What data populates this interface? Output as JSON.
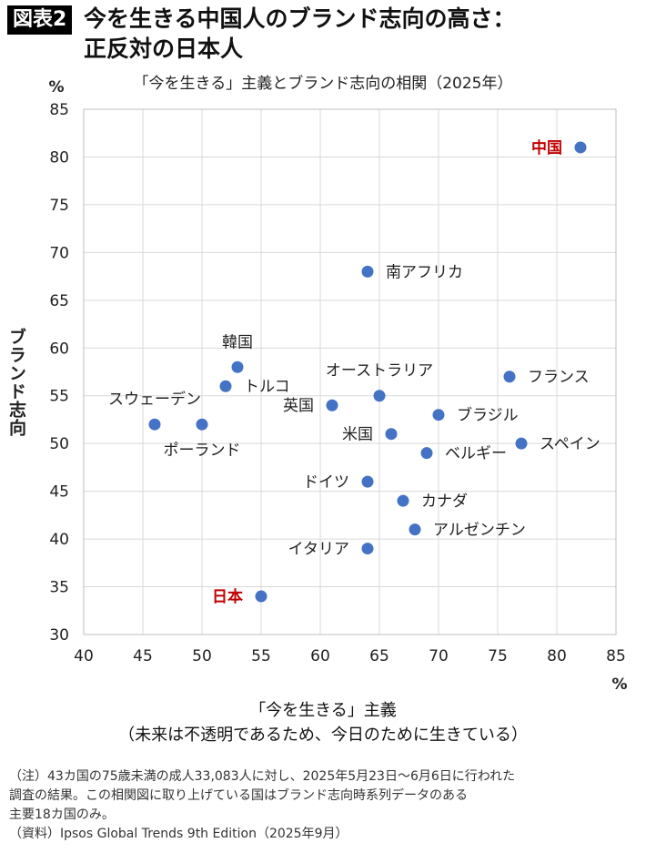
{
  "figure_label": "図表2",
  "title_lines": [
    "今を生きる中国人のブランド志向の高さ：",
    "正反対の日本人"
  ],
  "subtitle": "「今を生きる」主義とブランド志向の相関（2025年）",
  "xlabel_lines": [
    "「今を生きる」主義",
    "（未来は不透明であるため、今日のために生きている）"
  ],
  "notes": [
    "（注）43カ国の75歳未満の成人33,083人に対し、2025年5月23日～6月6日に行われた",
    "調査の結果。この相関図に取り上げている国はブランド志向時系列データのある",
    "主要18カ国のみ。",
    "（資料）Ipsos Global Trends 9th Edition（2025年9月）"
  ],
  "colors": {
    "point": "#4472c4",
    "highlight_label": "#c00000",
    "grid": "#d9d9d9",
    "text": "#222222"
  },
  "chart_data": {
    "type": "scatter",
    "xlabel": "「今を生きる」主義",
    "ylabel": "ブランド志向",
    "x_unit": "%",
    "y_unit": "%",
    "xlim": [
      40,
      85
    ],
    "ylim": [
      30,
      85
    ],
    "xticks": [
      40,
      45,
      50,
      55,
      60,
      65,
      70,
      75,
      80,
      85
    ],
    "yticks": [
      30,
      35,
      40,
      45,
      50,
      55,
      60,
      65,
      70,
      75,
      80,
      85
    ],
    "grid": true,
    "points": [
      {
        "label": "中国",
        "x": 82,
        "y": 81,
        "highlight": true,
        "side": "left"
      },
      {
        "label": "南アフリカ",
        "x": 64,
        "y": 68,
        "side": "right"
      },
      {
        "label": "韓国",
        "x": 53,
        "y": 58,
        "side": "above"
      },
      {
        "label": "トルコ",
        "x": 52,
        "y": 56,
        "side": "right"
      },
      {
        "label": "フランス",
        "x": 76,
        "y": 57,
        "side": "right"
      },
      {
        "label": "オーストラリア",
        "x": 65,
        "y": 55,
        "side": "above"
      },
      {
        "label": "英国",
        "x": 61,
        "y": 54,
        "side": "left"
      },
      {
        "label": "スウェーデン",
        "x": 46,
        "y": 52,
        "side": "above"
      },
      {
        "label": "ポーランド",
        "x": 50,
        "y": 52,
        "side": "below"
      },
      {
        "label": "ブラジル",
        "x": 70,
        "y": 53,
        "side": "right"
      },
      {
        "label": "米国",
        "x": 66,
        "y": 51,
        "side": "left"
      },
      {
        "label": "スペイン",
        "x": 77,
        "y": 50,
        "side": "right"
      },
      {
        "label": "ベルギー",
        "x": 69,
        "y": 49,
        "side": "right"
      },
      {
        "label": "ドイツ",
        "x": 64,
        "y": 46,
        "side": "left"
      },
      {
        "label": "カナダ",
        "x": 67,
        "y": 44,
        "side": "right"
      },
      {
        "label": "アルゼンチン",
        "x": 68,
        "y": 41,
        "side": "right"
      },
      {
        "label": "イタリア",
        "x": 64,
        "y": 39,
        "side": "left"
      },
      {
        "label": "日本",
        "x": 55,
        "y": 34,
        "highlight": true,
        "side": "left"
      }
    ]
  }
}
